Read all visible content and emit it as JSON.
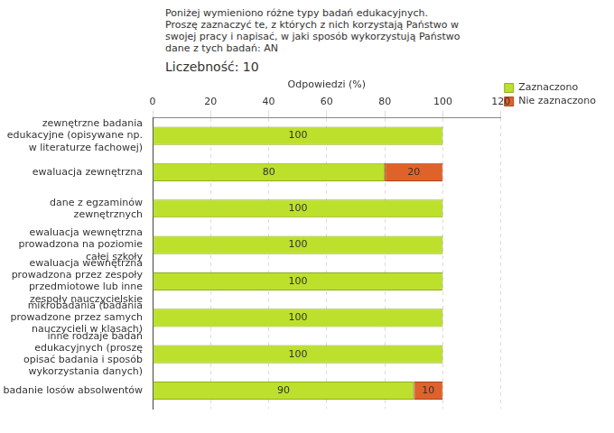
{
  "chart_data": {
    "type": "bar",
    "title": "Poniżej wymieniono różne typy badań edukacyjnych. Proszę zaznaczyć te, z których z nich korzystają Państwo w swojej pracy i napisać, w jaki sposób wykorzystują Państwo dane z tych badań:  AN",
    "subtitle": "Liczebność: 10",
    "x_label": "Odpowiedzi (%)",
    "categories": [
      "zewnętrzne badania edukacyjne (opisywane np. w literaturze fachowej)",
      "ewaluacja zewnętrzna",
      "dane z egzaminów zewnętrznych",
      "ewaluacja wewnętrzna prowadzona na poziomie całej szkoły",
      "ewaluacja wewnętrzna prowadzona przez zespoły przedmiotowe lub inne zespoły nauczycielskie",
      "mikrobadania (badania prowadzone przez samych nauczycieli w klasach)",
      "inne rodzaje badań edukacyjnych (proszę opisać badania i sposób wykorzystania danych)",
      "badanie losów absolwentów"
    ],
    "series": [
      {
        "name": "Zaznaczono",
        "color": "#bde02c",
        "values": [
          100,
          80,
          100,
          100,
          100,
          100,
          100,
          90
        ]
      },
      {
        "name": "Nie zaznaczono",
        "color": "#e0622b",
        "values": [
          0,
          20,
          0,
          0,
          0,
          0,
          0,
          10
        ]
      }
    ],
    "xlim": [
      0,
      120
    ],
    "xticks": [
      0,
      20,
      40,
      60,
      80,
      100,
      120
    ],
    "orientation": "horizontal",
    "stacked": true,
    "data_labels": true,
    "grid": true,
    "legend": "right"
  }
}
